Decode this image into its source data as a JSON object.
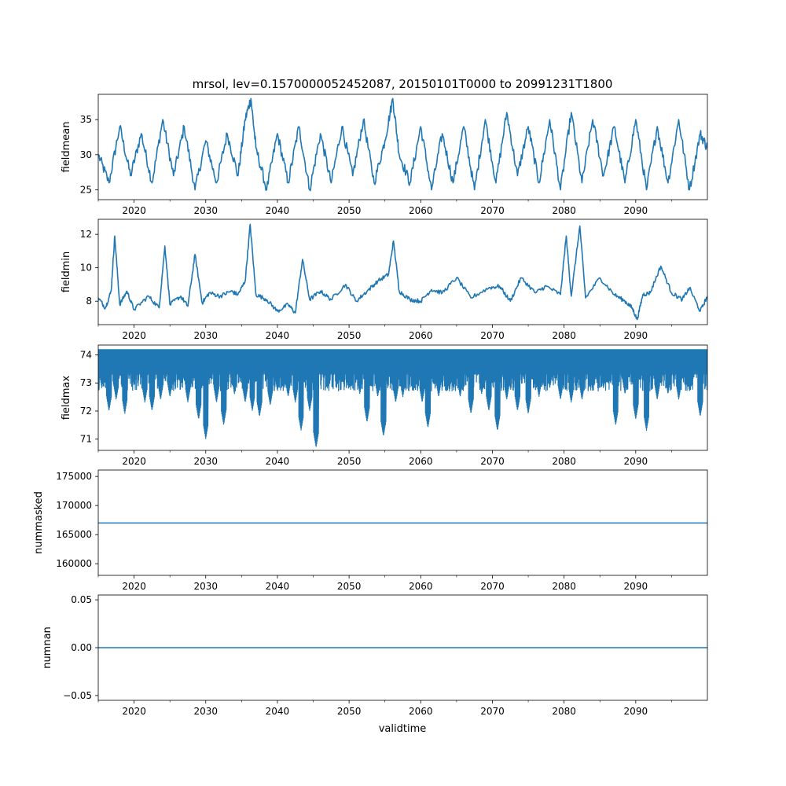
{
  "figure": {
    "title": "mrsol, lev=0.1570000052452087, 20150101T0000 to 20991231T1800",
    "xlabel": "validtime",
    "line_color": "#1f77b4"
  },
  "chart_data": [
    {
      "type": "line",
      "name": "fieldmean",
      "ylabel": "fieldmean",
      "x_range": [
        2015,
        2100
      ],
      "x_ticks": [
        2020,
        2030,
        2040,
        2050,
        2060,
        2070,
        2080,
        2090
      ],
      "x_tick_labels": [
        "2020",
        "2030",
        "2040",
        "2050",
        "2060",
        "2070",
        "2080",
        "2090"
      ],
      "ylim": [
        23.6,
        38.6
      ],
      "y_ticks": [
        25,
        30,
        35
      ],
      "y_tick_labels": [
        "25",
        "30",
        "35"
      ],
      "series": [
        {
          "name": "fieldmean",
          "x": [
            2015,
            2016.5,
            2018,
            2019.5,
            2021,
            2022.5,
            2024,
            2025.5,
            2027,
            2028.5,
            2030,
            2031.5,
            2033,
            2034.5,
            2035.5,
            2036.3,
            2037,
            2038.5,
            2040,
            2041.5,
            2043,
            2044.5,
            2046,
            2047.5,
            2049,
            2050.5,
            2052,
            2053.5,
            2055,
            2056.1,
            2057,
            2058.5,
            2060,
            2061.5,
            2063,
            2064.5,
            2066,
            2067.5,
            2069,
            2070.5,
            2072,
            2073.5,
            2075,
            2076.5,
            2078,
            2079.5,
            2081,
            2082.5,
            2084,
            2085.5,
            2087,
            2088.5,
            2090,
            2091.5,
            2093,
            2094.5,
            2096,
            2097.5,
            2099,
            2100
          ],
          "values": [
            30,
            26,
            34,
            27,
            33,
            26,
            35,
            27,
            34,
            25,
            32,
            26,
            33,
            27,
            35,
            38,
            31,
            25,
            33,
            26,
            34,
            25,
            33,
            26,
            34,
            27,
            35,
            26,
            32,
            38,
            30,
            26,
            34,
            25,
            33,
            26,
            34,
            25,
            35,
            26,
            36,
            27,
            34,
            26,
            35,
            25,
            36,
            26,
            35,
            27,
            34,
            26,
            35,
            25,
            34,
            26,
            35,
            25,
            33,
            31
          ]
        }
      ]
    },
    {
      "type": "line",
      "name": "fieldmin",
      "ylabel": "fieldmin",
      "x_range": [
        2015,
        2100
      ],
      "x_ticks": [
        2020,
        2030,
        2040,
        2050,
        2060,
        2070,
        2080,
        2090
      ],
      "x_tick_labels": [
        "2020",
        "2030",
        "2040",
        "2050",
        "2060",
        "2070",
        "2080",
        "2090"
      ],
      "ylim": [
        6.6,
        12.9
      ],
      "y_ticks": [
        8,
        10,
        12
      ],
      "y_tick_labels": [
        "8",
        "10",
        "12"
      ],
      "series": [
        {
          "name": "fieldmin",
          "x": [
            2015,
            2016,
            2016.8,
            2017.3,
            2018,
            2019,
            2020,
            2022,
            2023.5,
            2024.3,
            2025,
            2026.5,
            2027.5,
            2028.5,
            2029.5,
            2030.5,
            2032,
            2033.5,
            2034.5,
            2035.5,
            2036.2,
            2037,
            2038.5,
            2040,
            2041.5,
            2042.5,
            2043.5,
            2044.5,
            2046,
            2047.5,
            2049.5,
            2051,
            2052.5,
            2054,
            2055.5,
            2056.2,
            2057,
            2058.5,
            2060,
            2061.5,
            2063,
            2065,
            2067,
            2069.5,
            2071,
            2072.5,
            2074,
            2076,
            2077.5,
            2079.5,
            2080.3,
            2081,
            2082.2,
            2083,
            2085,
            2087,
            2088.5,
            2089.5,
            2090.2,
            2091,
            2092,
            2093.5,
            2095,
            2096.5,
            2097.5,
            2099,
            2100
          ],
          "values": [
            8.2,
            7.6,
            8.6,
            11.9,
            7.8,
            8.6,
            7.5,
            8.3,
            7.6,
            11.3,
            7.8,
            8.3,
            7.7,
            10.8,
            7.9,
            8.5,
            8.3,
            8.6,
            8.4,
            9.2,
            12.6,
            8.4,
            8.1,
            7.4,
            7.8,
            7.3,
            10.5,
            8.1,
            8.6,
            8.1,
            9.0,
            8.0,
            8.6,
            9.2,
            9.6,
            11.6,
            8.6,
            8.1,
            8.0,
            8.7,
            8.5,
            9.4,
            8.2,
            8.8,
            8.9,
            8.0,
            9.4,
            8.5,
            8.9,
            8.4,
            11.9,
            8.3,
            12.5,
            8.2,
            9.4,
            8.4,
            8.0,
            7.6,
            6.9,
            8.4,
            8.5,
            10.1,
            8.5,
            8.1,
            8.8,
            7.4,
            8.3
          ]
        }
      ]
    },
    {
      "type": "line",
      "name": "fieldmax",
      "ylabel": "fieldmax",
      "x_range": [
        2015,
        2100
      ],
      "x_ticks": [
        2020,
        2030,
        2040,
        2050,
        2060,
        2070,
        2080,
        2090
      ],
      "x_tick_labels": [
        "2020",
        "2030",
        "2040",
        "2050",
        "2060",
        "2070",
        "2080",
        "2090"
      ],
      "ylim": [
        70.6,
        74.35
      ],
      "y_ticks": [
        71,
        72,
        73,
        74
      ],
      "y_tick_labels": [
        "71",
        "72",
        "73",
        "74"
      ],
      "ceiling": 74.2,
      "dips": [
        {
          "x": 2015.5,
          "min": 72.8
        },
        {
          "x": 2016.5,
          "min": 72.0
        },
        {
          "x": 2017.5,
          "min": 72.4
        },
        {
          "x": 2018.7,
          "min": 71.9
        },
        {
          "x": 2020.0,
          "min": 72.9
        },
        {
          "x": 2021.5,
          "min": 72.3
        },
        {
          "x": 2022.5,
          "min": 72.0
        },
        {
          "x": 2023.7,
          "min": 72.4
        },
        {
          "x": 2025.0,
          "min": 72.5
        },
        {
          "x": 2026.5,
          "min": 72.9
        },
        {
          "x": 2027.5,
          "min": 72.3
        },
        {
          "x": 2029.0,
          "min": 71.7
        },
        {
          "x": 2030.0,
          "min": 71.0
        },
        {
          "x": 2031.5,
          "min": 72.3
        },
        {
          "x": 2032.5,
          "min": 71.5
        },
        {
          "x": 2034.0,
          "min": 72.6
        },
        {
          "x": 2035.5,
          "min": 72.3
        },
        {
          "x": 2036.5,
          "min": 72.0
        },
        {
          "x": 2037.5,
          "min": 71.8
        },
        {
          "x": 2039.0,
          "min": 72.2
        },
        {
          "x": 2040.0,
          "min": 72.7
        },
        {
          "x": 2041.5,
          "min": 72.5
        },
        {
          "x": 2042.5,
          "min": 72.3
        },
        {
          "x": 2043.3,
          "min": 71.3
        },
        {
          "x": 2044.5,
          "min": 72.0
        },
        {
          "x": 2045.4,
          "min": 70.7
        },
        {
          "x": 2047.0,
          "min": 72.8
        },
        {
          "x": 2048.5,
          "min": 72.9
        },
        {
          "x": 2050.0,
          "min": 72.8
        },
        {
          "x": 2051.5,
          "min": 72.6
        },
        {
          "x": 2052.5,
          "min": 71.6
        },
        {
          "x": 2054.0,
          "min": 72.5
        },
        {
          "x": 2054.8,
          "min": 71.1
        },
        {
          "x": 2056.5,
          "min": 72.3
        },
        {
          "x": 2057.5,
          "min": 72.5
        },
        {
          "x": 2059.0,
          "min": 72.7
        },
        {
          "x": 2060.2,
          "min": 72.3
        },
        {
          "x": 2061.0,
          "min": 71.4
        },
        {
          "x": 2062.5,
          "min": 72.5
        },
        {
          "x": 2064.0,
          "min": 72.7
        },
        {
          "x": 2065.5,
          "min": 72.5
        },
        {
          "x": 2067.0,
          "min": 71.9
        },
        {
          "x": 2068.5,
          "min": 72.6
        },
        {
          "x": 2069.5,
          "min": 72.0
        },
        {
          "x": 2070.7,
          "min": 71.3
        },
        {
          "x": 2072.0,
          "min": 72.4
        },
        {
          "x": 2073.5,
          "min": 72.0
        },
        {
          "x": 2075.0,
          "min": 71.9
        },
        {
          "x": 2076.5,
          "min": 72.5
        },
        {
          "x": 2078.0,
          "min": 72.8
        },
        {
          "x": 2079.5,
          "min": 72.4
        },
        {
          "x": 2081.0,
          "min": 72.3
        },
        {
          "x": 2082.5,
          "min": 72.4
        },
        {
          "x": 2084.0,
          "min": 72.7
        },
        {
          "x": 2085.5,
          "min": 72.8
        },
        {
          "x": 2087.2,
          "min": 71.5
        },
        {
          "x": 2088.5,
          "min": 72.6
        },
        {
          "x": 2090.0,
          "min": 71.7
        },
        {
          "x": 2091.5,
          "min": 71.3
        },
        {
          "x": 2093.0,
          "min": 72.4
        },
        {
          "x": 2094.5,
          "min": 72.6
        },
        {
          "x": 2096.0,
          "min": 72.4
        },
        {
          "x": 2097.5,
          "min": 72.7
        },
        {
          "x": 2099.0,
          "min": 71.8
        }
      ]
    },
    {
      "type": "line",
      "name": "nummasked",
      "ylabel": "nummasked",
      "x_range": [
        2015,
        2100
      ],
      "x_ticks": [
        2020,
        2030,
        2040,
        2050,
        2060,
        2070,
        2080,
        2090
      ],
      "x_tick_labels": [
        "2020",
        "2030",
        "2040",
        "2050",
        "2060",
        "2070",
        "2080",
        "2090"
      ],
      "ylim": [
        158000,
        176100
      ],
      "y_ticks": [
        160000,
        165000,
        170000,
        175000
      ],
      "y_tick_labels": [
        "160000",
        "165000",
        "170000",
        "175000"
      ],
      "series": [
        {
          "name": "nummasked",
          "x": [
            2015,
            2100
          ],
          "values": [
            167000,
            167000
          ]
        }
      ]
    },
    {
      "type": "line",
      "name": "numnan",
      "ylabel": "numnan",
      "x_range": [
        2015,
        2100
      ],
      "x_ticks": [
        2020,
        2030,
        2040,
        2050,
        2060,
        2070,
        2080,
        2090
      ],
      "x_tick_labels": [
        "2020",
        "2030",
        "2040",
        "2050",
        "2060",
        "2070",
        "2080",
        "2090"
      ],
      "ylim": [
        -0.055,
        0.055
      ],
      "y_ticks": [
        -0.05,
        0,
        0.05
      ],
      "y_tick_labels": [
        "−0.05",
        "0.00",
        "0.05"
      ],
      "series": [
        {
          "name": "numnan",
          "x": [
            2015,
            2100
          ],
          "values": [
            0,
            0
          ]
        }
      ]
    }
  ]
}
